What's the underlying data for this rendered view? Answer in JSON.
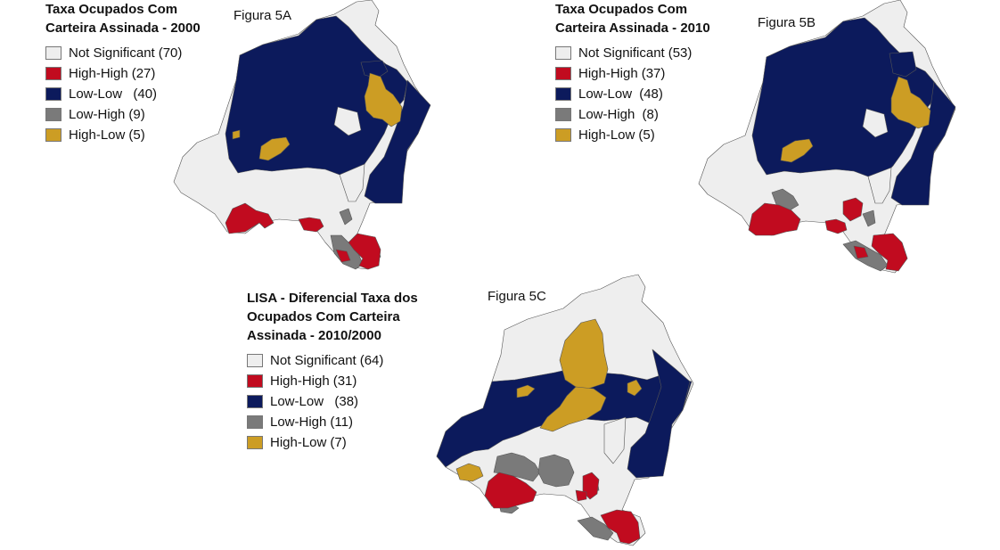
{
  "colors": {
    "not_significant": "#eeeeee",
    "high_high": "#c10b1f",
    "low_low": "#0c1a5c",
    "low_high": "#7a7a7a",
    "high_low": "#cc9d24",
    "border": "#555555"
  },
  "maps": [
    {
      "figure_label": "Figura 5A",
      "legend": {
        "title_line1": "Taxa Ocupados Com",
        "title_line2": "Carteira Assinada - 2000",
        "title_line3": "",
        "items": [
          {
            "label": "Not Significant",
            "count": "(70)",
            "color_key": "not_significant"
          },
          {
            "label": "High-High",
            "count": "(27)",
            "color_key": "high_high"
          },
          {
            "label": "Low-Low  ",
            "count": "(40)",
            "color_key": "low_low"
          },
          {
            "label": "Low-High",
            "count": "(9)",
            "color_key": "low_high"
          },
          {
            "label": "High-Low",
            "count": "(5)",
            "color_key": "high_low"
          }
        ]
      }
    },
    {
      "figure_label": "Figura 5B",
      "legend": {
        "title_line1": "Taxa Ocupados Com",
        "title_line2": "Carteira Assinada - 2010",
        "title_line3": "",
        "items": [
          {
            "label": "Not Significant",
            "count": "(53)",
            "color_key": "not_significant"
          },
          {
            "label": "High-High",
            "count": "(37)",
            "color_key": "high_high"
          },
          {
            "label": "Low-Low ",
            "count": "(48)",
            "color_key": "low_low"
          },
          {
            "label": "Low-High ",
            "count": "(8)",
            "color_key": "low_high"
          },
          {
            "label": "High-Low",
            "count": "(5)",
            "color_key": "high_low"
          }
        ]
      }
    },
    {
      "figure_label": "Figura 5C",
      "legend": {
        "title_line1": "LISA - Diferencial Taxa dos",
        "title_line2": "Ocupados Com Carteira",
        "title_line3": "Assinada - 2010/2000",
        "items": [
          {
            "label": "Not Significant",
            "count": "(64)",
            "color_key": "not_significant"
          },
          {
            "label": "High-High",
            "count": "(31)",
            "color_key": "high_high"
          },
          {
            "label": "Low-Low  ",
            "count": "(38)",
            "color_key": "low_low"
          },
          {
            "label": "Low-High",
            "count": "(11)",
            "color_key": "low_high"
          },
          {
            "label": "High-Low",
            "count": "(7)",
            "color_key": "high_low"
          }
        ]
      }
    }
  ]
}
